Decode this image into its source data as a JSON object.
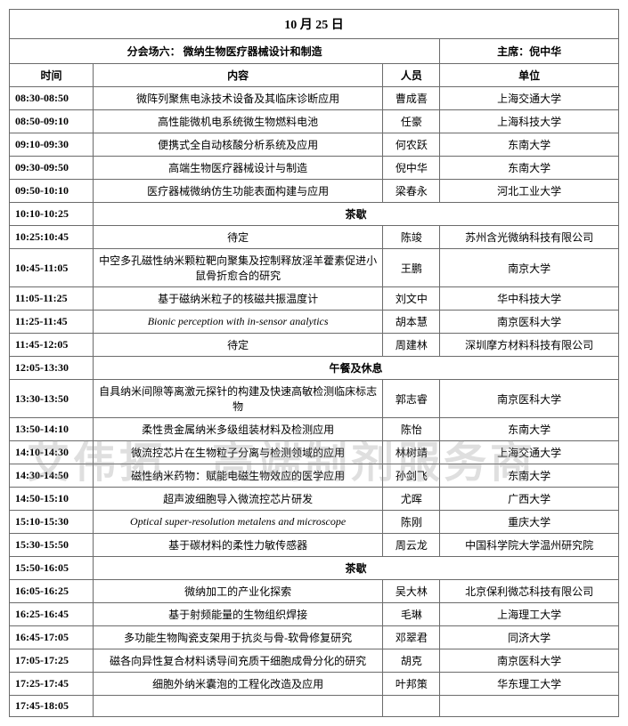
{
  "header": {
    "date": "10 月 25 日"
  },
  "venue_row": {
    "venue": "分会场六： 微纳生物医疗器械设计和制造",
    "chair": "主席：倪中华"
  },
  "cols": {
    "time": "时间",
    "content": "内容",
    "person": "人员",
    "unit": "单位"
  },
  "breaks": {
    "tea": "茶歇",
    "lunch": "午餐及休息"
  },
  "rows": [
    {
      "time": "08:30-08:50",
      "content": "微阵列聚焦电泳技术设备及其临床诊断应用",
      "person": "曹成喜",
      "unit": "上海交通大学"
    },
    {
      "time": "08:50-09:10",
      "content": "高性能微机电系统微生物燃料电池",
      "person": "任豪",
      "unit": "上海科技大学"
    },
    {
      "time": "09:10-09:30",
      "content": "便携式全自动核酸分析系统及应用",
      "person": "何农跃",
      "unit": "东南大学"
    },
    {
      "time": "09:30-09:50",
      "content": "高端生物医疗器械设计与制造",
      "person": "倪中华",
      "unit": "东南大学"
    },
    {
      "time": "09:50-10:10",
      "content": "医疗器械微纳仿生功能表面构建与应用",
      "person": "梁春永",
      "unit": "河北工业大学"
    },
    {
      "time": "10:10-10:25",
      "break": "tea"
    },
    {
      "time": "10:25:10:45",
      "content": "待定",
      "person": "陈竣",
      "unit": "苏州含光微纳科技有限公司"
    },
    {
      "time": "10:45-11:05",
      "content": "中空多孔磁性纳米颗粒靶向聚集及控制释放淫羊藿素促进小鼠骨折愈合的研究",
      "person": "王鹏",
      "unit": "南京大学"
    },
    {
      "time": "11:05-11:25",
      "content": "基于磁纳米粒子的核磁共振温度计",
      "person": "刘文中",
      "unit": "华中科技大学"
    },
    {
      "time": "11:25-11:45",
      "content_italic": "Bionic perception with in-sensor analytics",
      "person": "胡本慧",
      "unit": "南京医科大学"
    },
    {
      "time": "11:45-12:05",
      "content": "待定",
      "person": "周建林",
      "unit": "深圳摩方材料科技有限公司"
    },
    {
      "time": "12:05-13:30",
      "break": "lunch"
    },
    {
      "time": "13:30-13:50",
      "content": "自具纳米间隙等离激元探针的构建及快速高敏检测临床标志物",
      "person": "郭志睿",
      "unit": "南京医科大学"
    },
    {
      "time": "13:50-14:10",
      "content": "柔性贵金属纳米多级组装材料及检测应用",
      "person": "陈怡",
      "unit": "东南大学"
    },
    {
      "time": "14:10-14:30",
      "content": "微流控芯片在生物粒子分离与检测领域的应用",
      "person": "林树靖",
      "unit": "上海交通大学"
    },
    {
      "time": "14:30-14:50",
      "content": "磁性纳米药物：赋能电磁生物效应的医学应用",
      "person": "孙剑飞",
      "unit": "东南大学"
    },
    {
      "time": "14:50-15:10",
      "content": "超声波细胞导入微流控芯片研发",
      "person": "尤晖",
      "unit": "广西大学"
    },
    {
      "time": "15:10-15:30",
      "content_italic": "Optical super-resolution metalens and microscope",
      "person": "陈刚",
      "unit": "重庆大学"
    },
    {
      "time": "15:30-15:50",
      "content": "基于碳材料的柔性力敏传感器",
      "person": "周云龙",
      "unit": "中国科学院大学温州研究院"
    },
    {
      "time": "15:50-16:05",
      "break": "tea"
    },
    {
      "time": "16:05-16:25",
      "content": "微纳加工的产业化探索",
      "person": "吴大林",
      "unit": "北京保利微芯科技有限公司"
    },
    {
      "time": "16:25-16:45",
      "content": "基于射频能量的生物组织焊接",
      "person": "毛琳",
      "unit": "上海理工大学"
    },
    {
      "time": "16:45-17:05",
      "content": "多功能生物陶瓷支架用于抗炎与骨-软骨修复研究",
      "person": "邓翠君",
      "unit": "同济大学"
    },
    {
      "time": "17:05-17:25",
      "content": "磁各向异性复合材料诱导间充质干细胞成骨分化的研究",
      "person": "胡克",
      "unit": "南京医科大学"
    },
    {
      "time": "17:25-17:45",
      "content": "细胞外纳米囊泡的工程化改造及应用",
      "person": "叶邦策",
      "unit": "华东理工大学"
    },
    {
      "time": "17:45-18:05",
      "content": "",
      "person": "",
      "unit": ""
    }
  ],
  "watermark": {
    "line2": "艾伟拓　高端制剂服务商"
  }
}
